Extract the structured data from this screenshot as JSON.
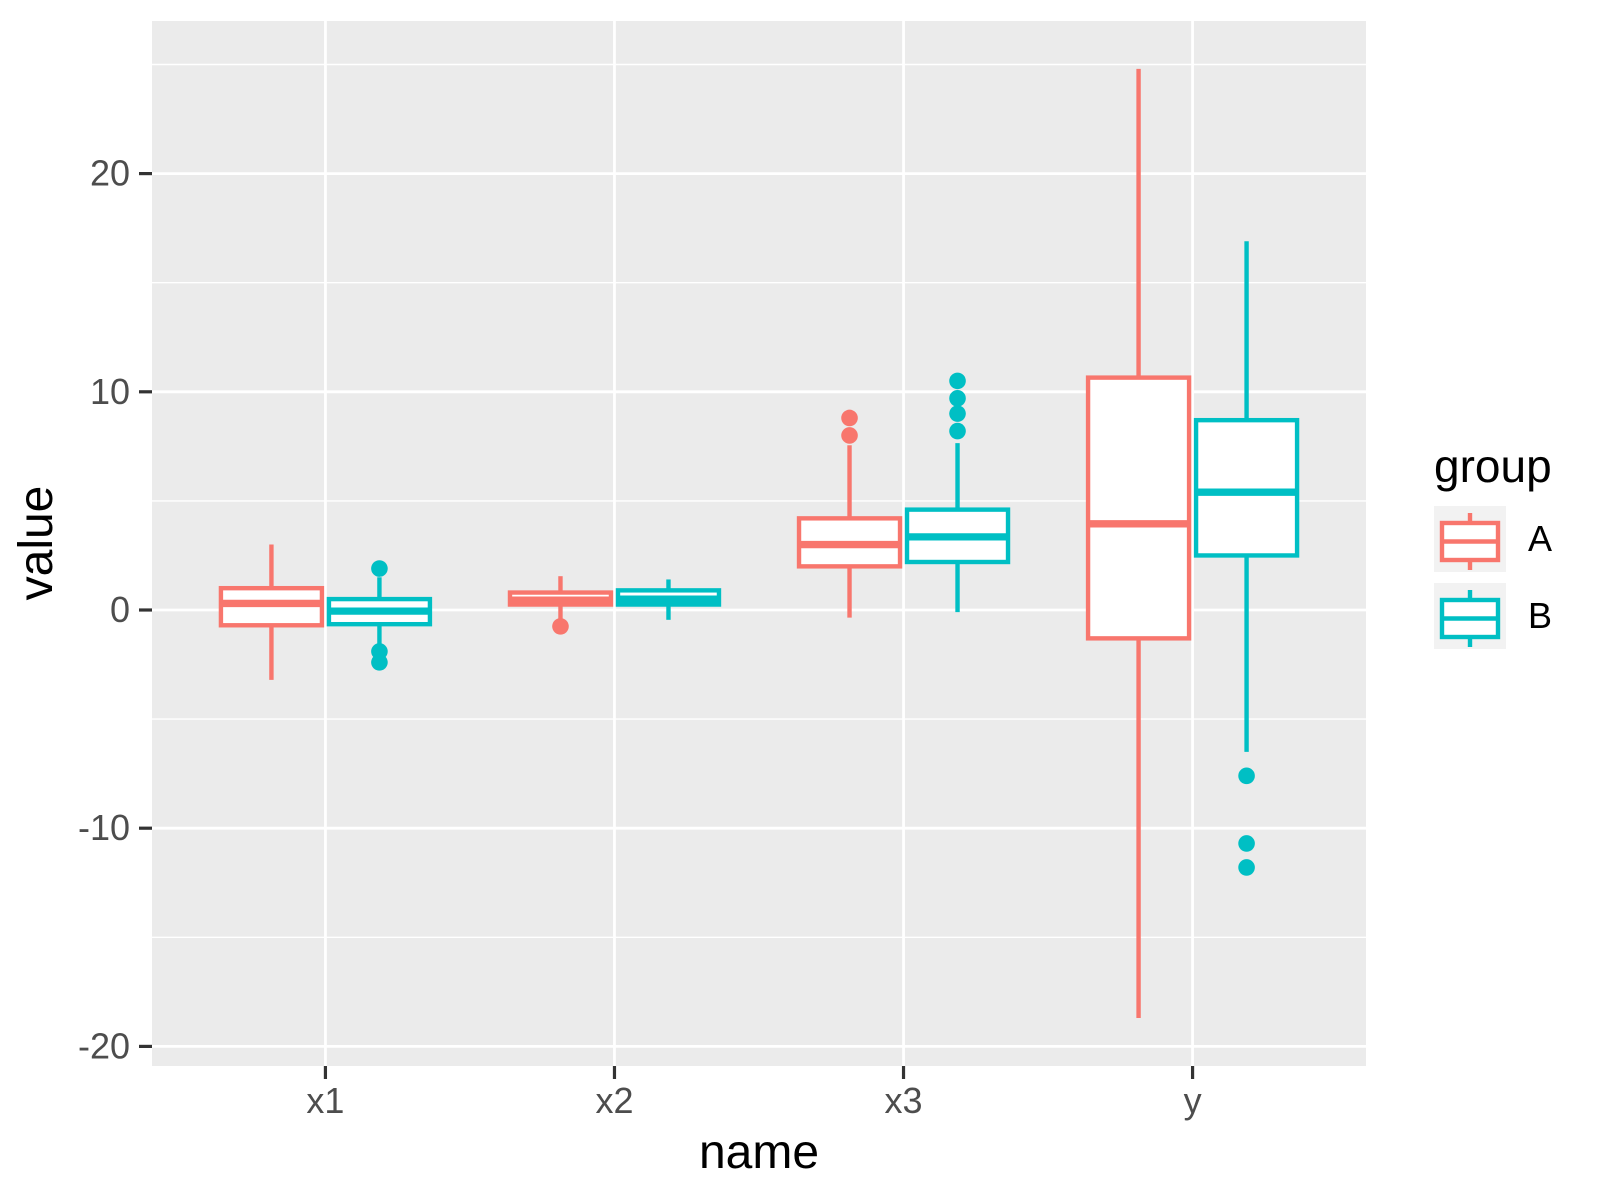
{
  "chart_data": {
    "type": "boxplot",
    "title": "",
    "xlabel": "name",
    "ylabel": "value",
    "categories": [
      "x1",
      "x2",
      "x3",
      "y"
    ],
    "y_tick_values": [
      -20,
      -10,
      0,
      10,
      20
    ],
    "y_tick_labels": [
      "-20",
      "-10",
      "0",
      "10",
      "20"
    ],
    "y_minor_ticks": [
      -15,
      -5,
      5,
      15,
      25
    ],
    "ylim": [
      -20.9,
      27.0
    ],
    "grid": true,
    "legend": {
      "title": "group",
      "position": "right",
      "entries": [
        {
          "label": "A",
          "color": "#F8766D"
        },
        {
          "label": "B",
          "color": "#00BFC4"
        }
      ]
    },
    "series": [
      {
        "name": "A",
        "color": "#F8766D",
        "boxes": [
          {
            "category": "x1",
            "whisker_low": -3.2,
            "q1": -0.7,
            "median": 0.3,
            "q3": 1.0,
            "whisker_high": 3.0,
            "outliers": []
          },
          {
            "category": "x2",
            "whisker_low": -0.4,
            "q1": 0.25,
            "median": 0.45,
            "q3": 0.8,
            "whisker_high": 1.55,
            "outliers": [
              -0.75
            ]
          },
          {
            "category": "x3",
            "whisker_low": -0.35,
            "q1": 2.0,
            "median": 3.0,
            "q3": 4.2,
            "whisker_high": 7.55,
            "outliers": [
              8.0,
              8.8
            ]
          },
          {
            "category": "y",
            "whisker_low": -18.7,
            "q1": -1.3,
            "median": 3.95,
            "q3": 10.65,
            "whisker_high": 24.8,
            "outliers": []
          }
        ]
      },
      {
        "name": "B",
        "color": "#00BFC4",
        "boxes": [
          {
            "category": "x1",
            "whisker_low": -1.65,
            "q1": -0.65,
            "median": -0.05,
            "q3": 0.5,
            "whisker_high": 1.5,
            "outliers": [
              1.9,
              -1.9,
              -2.4
            ]
          },
          {
            "category": "x2",
            "whisker_low": -0.45,
            "q1": 0.25,
            "median": 0.5,
            "q3": 0.9,
            "whisker_high": 1.4,
            "outliers": []
          },
          {
            "category": "x3",
            "whisker_low": -0.1,
            "q1": 2.2,
            "median": 3.35,
            "q3": 4.6,
            "whisker_high": 7.65,
            "outliers": [
              8.2,
              9.0,
              9.7,
              10.5
            ]
          },
          {
            "category": "y",
            "whisker_low": -6.5,
            "q1": 2.5,
            "median": 5.4,
            "q3": 8.7,
            "whisker_high": 16.9,
            "outliers": [
              -7.6,
              -10.7,
              -11.8
            ]
          }
        ]
      }
    ],
    "colors": {
      "panel_bg": "#EBEBEB",
      "grid": "#FFFFFF",
      "legend_key_bg": "#F2F2F2",
      "tick_mark": "#333333",
      "tick_text": "#4D4D4D",
      "title_text": "#000000",
      "figure_bg": "#FFFFFF"
    }
  }
}
